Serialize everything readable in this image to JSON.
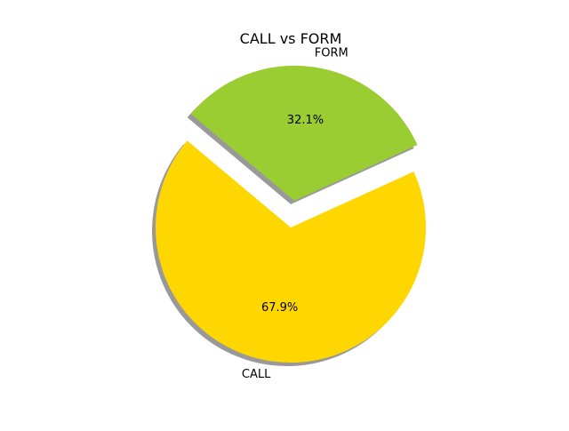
{
  "chart_data": {
    "type": "pie",
    "title": "CALL vs FORM",
    "slices": [
      {
        "label": "CALL",
        "value": 67.9,
        "pct_label": "67.9%",
        "color": "#ffd700",
        "explode": 0
      },
      {
        "label": "FORM",
        "value": 32.1,
        "pct_label": "32.1%",
        "color": "#9acd32",
        "explode": 0.2
      }
    ],
    "start_angle_deg": 140,
    "shadow": true
  }
}
